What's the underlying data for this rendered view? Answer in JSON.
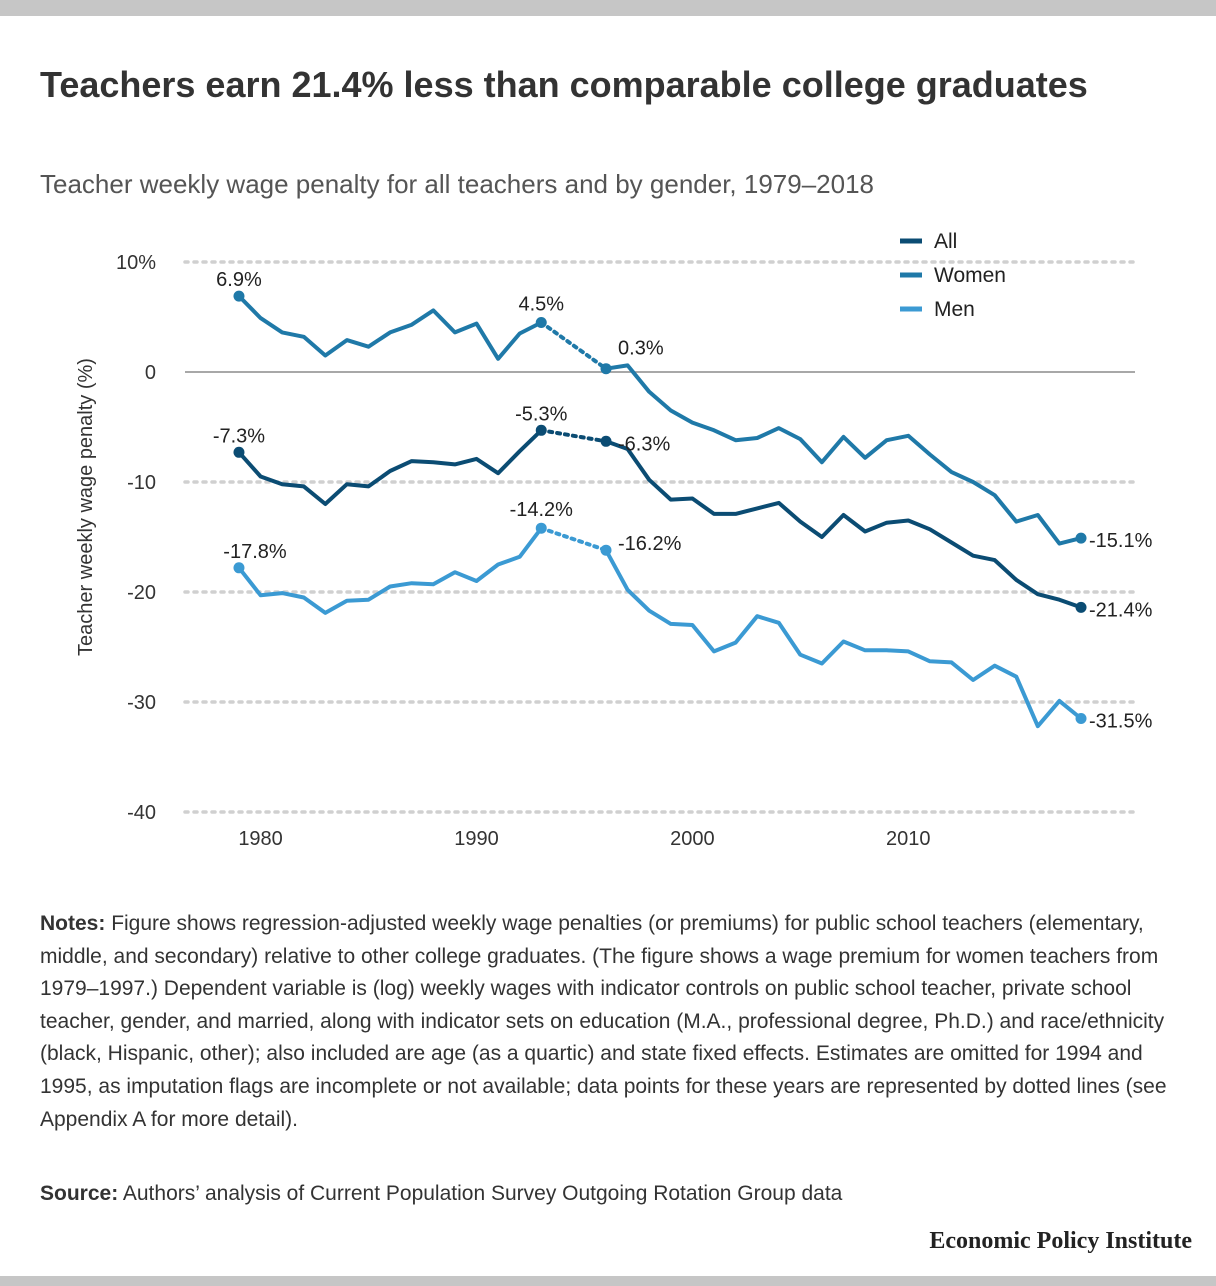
{
  "title": "Teachers earn 21.4% less than comparable college graduates",
  "subtitle": "Teacher weekly wage penalty for all teachers and by gender, 1979–2018",
  "notes": {
    "label": "Notes:",
    "text": "Figure shows regression-adjusted weekly wage penalties (or premiums) for public school teachers (elementary, middle, and secondary) relative to other college graduates. (The figure shows a wage premium for women teachers from 1979–1997.) Dependent variable is (log) weekly wages with indicator controls on public school teacher, private school teacher, gender, and married, along with indicator sets on education (M.A., professional degree, Ph.D.) and race/ethnicity (black, Hispanic, other); also included are age (as a quartic) and state fixed effects. Estimates are omitted for 1994 and 1995, as imputation flags are incomplete or not available; data points for these years are represented by dotted lines (see Appendix A for more detail)."
  },
  "source": {
    "label": "Source:",
    "text": "Authors’ analysis of Current Population Survey Outgoing Rotation Group data"
  },
  "brand": "Economic Policy Institute",
  "chart_data": {
    "type": "line",
    "ylabel": "Teacher weekly wage penalty (%)",
    "xlim": [
      1976.5,
      2020.5
    ],
    "ylim": [
      -40,
      10
    ],
    "yticks": [
      10,
      0,
      -10,
      -20,
      -30,
      -40
    ],
    "ytick_labels": [
      "10%",
      "0",
      "-10",
      "-20",
      "-30",
      "-40"
    ],
    "xticks": [
      1980,
      1990,
      2000,
      2010
    ],
    "xtick_labels": [
      "1980",
      "1990",
      "2000",
      "2010"
    ],
    "grid": "horizontal dotted",
    "zero_line": true,
    "legend_position": "top-right",
    "gap_years_dotted": [
      1993,
      1996
    ],
    "series": [
      {
        "name": "All",
        "color": "#0b4c73",
        "x": [
          1979,
          1980,
          1981,
          1982,
          1983,
          1984,
          1985,
          1986,
          1987,
          1988,
          1989,
          1990,
          1991,
          1992,
          1993,
          1996,
          1997,
          1998,
          1999,
          2000,
          2001,
          2002,
          2003,
          2004,
          2005,
          2006,
          2007,
          2008,
          2009,
          2010,
          2011,
          2012,
          2013,
          2014,
          2015,
          2016,
          2017,
          2018
        ],
        "values": [
          -7.3,
          -9.5,
          -10.2,
          -10.4,
          -12.0,
          -10.2,
          -10.4,
          -9.0,
          -8.1,
          -8.2,
          -8.4,
          -7.9,
          -9.2,
          -7.2,
          -5.3,
          -6.3,
          -7.0,
          -9.8,
          -11.6,
          -11.5,
          -12.9,
          -12.9,
          -12.4,
          -11.9,
          -13.6,
          -15.0,
          -13.0,
          -14.5,
          -13.7,
          -13.5,
          -14.3,
          -15.5,
          -16.7,
          -17.1,
          -18.9,
          -20.2,
          -20.7,
          -21.4
        ],
        "start_label": "-7.3%",
        "break_start_label": "-5.3%",
        "break_end_label": "-6.3%",
        "end_label": "-21.4%"
      },
      {
        "name": "Women",
        "color": "#1f79a8",
        "x": [
          1979,
          1980,
          1981,
          1982,
          1983,
          1984,
          1985,
          1986,
          1987,
          1988,
          1989,
          1990,
          1991,
          1992,
          1993,
          1996,
          1997,
          1998,
          1999,
          2000,
          2001,
          2002,
          2003,
          2004,
          2005,
          2006,
          2007,
          2008,
          2009,
          2010,
          2011,
          2012,
          2013,
          2014,
          2015,
          2016,
          2017,
          2018
        ],
        "values": [
          6.9,
          4.9,
          3.6,
          3.2,
          1.5,
          2.9,
          2.3,
          3.6,
          4.3,
          5.6,
          3.6,
          4.4,
          1.2,
          3.5,
          4.5,
          0.3,
          0.6,
          -1.8,
          -3.5,
          -4.6,
          -5.3,
          -6.2,
          -6.0,
          -5.1,
          -6.1,
          -8.2,
          -5.9,
          -7.8,
          -6.2,
          -5.8,
          -7.5,
          -9.1,
          -10.0,
          -11.2,
          -13.6,
          -13.0,
          -15.6,
          -15.1
        ],
        "start_label": "6.9%",
        "break_start_label": "4.5%",
        "break_end_label": "0.3%",
        "end_label": "-15.1%"
      },
      {
        "name": "Men",
        "color": "#3b9ad3",
        "x": [
          1979,
          1980,
          1981,
          1982,
          1983,
          1984,
          1985,
          1986,
          1987,
          1988,
          1989,
          1990,
          1991,
          1992,
          1993,
          1996,
          1997,
          1998,
          1999,
          2000,
          2001,
          2002,
          2003,
          2004,
          2005,
          2006,
          2007,
          2008,
          2009,
          2010,
          2011,
          2012,
          2013,
          2014,
          2015,
          2016,
          2017,
          2018
        ],
        "values": [
          -17.8,
          -20.3,
          -20.1,
          -20.5,
          -21.9,
          -20.8,
          -20.7,
          -19.5,
          -19.2,
          -19.3,
          -18.2,
          -19.0,
          -17.5,
          -16.8,
          -14.2,
          -16.2,
          -19.8,
          -21.7,
          -22.9,
          -23.0,
          -25.4,
          -24.6,
          -22.2,
          -22.8,
          -25.7,
          -26.5,
          -24.5,
          -25.3,
          -25.3,
          -25.4,
          -26.3,
          -26.4,
          -28.0,
          -26.7,
          -27.7,
          -32.2,
          -29.9,
          -31.5
        ],
        "start_label": "-17.8%",
        "break_start_label": "-14.2%",
        "break_end_label": "-16.2%",
        "end_label": "-31.5%"
      }
    ]
  }
}
